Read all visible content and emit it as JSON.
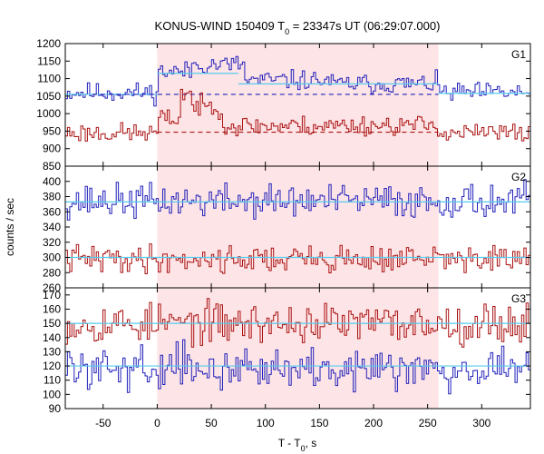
{
  "chart_data": {
    "type": "line",
    "title": {
      "main": "KONUS-WIND 150409 T",
      "sub": "0",
      "rest": " = 23347s UT (06:29:07.000)"
    },
    "xlabel": {
      "main": "T - T",
      "sub": "0",
      "rest": ", s"
    },
    "ylabel": "counts / sec",
    "xlim": [
      -85,
      345
    ],
    "x_ticks": [
      -50,
      0,
      50,
      100,
      150,
      200,
      250,
      300
    ],
    "shaded_interval": [
      0,
      260
    ],
    "colors": {
      "upper": "#2222bb",
      "lower": "#aa1111",
      "fit": "#55ccee",
      "shade": "#fde4e6"
    },
    "panels": [
      {
        "name": "G1",
        "ylim": [
          850,
          1200
        ],
        "y_ticks": [
          850,
          900,
          950,
          1000,
          1050,
          1100,
          1150,
          1200
        ],
        "series": [
          {
            "color_key": "upper",
            "mean": 1060,
            "noise": 14,
            "seed": 11,
            "excess": [
              [
                0,
                30,
                60
              ],
              [
                30,
                80,
                80
              ],
              [
                80,
                160,
                35
              ],
              [
                160,
                260,
                25
              ]
            ],
            "fit": [
              [
                -85,
                0,
                1055
              ],
              [
                0,
                35,
                1115
              ],
              [
                35,
                75,
                1115
              ],
              [
                75,
                260,
                1085
              ],
              [
                260,
                345,
                1058
              ]
            ],
            "baseline": {
              "x": [
                -60,
                260
              ],
              "value": 1055
            }
          },
          {
            "color_key": "lower",
            "mean": 945,
            "noise": 14,
            "seed": 23,
            "excess": [
              [
                0,
                30,
                40
              ],
              [
                20,
                60,
                75
              ],
              [
                60,
                160,
                20
              ],
              [
                160,
                260,
                22
              ]
            ],
            "fit": [],
            "baseline": {
              "x": [
                0,
                260
              ],
              "value": 947
            }
          }
        ]
      },
      {
        "name": "G2",
        "ylim": [
          260,
          420
        ],
        "y_ticks": [
          260,
          280,
          300,
          320,
          340,
          360,
          380,
          400
        ],
        "series": [
          {
            "color_key": "upper",
            "mean": 374,
            "noise": 11,
            "seed": 37,
            "excess": [],
            "fit": [
              [
                -85,
                345,
                373
              ]
            ],
            "baseline": null
          },
          {
            "color_key": "lower",
            "mean": 298,
            "noise": 9,
            "seed": 41,
            "excess": [],
            "fit": [
              [
                -85,
                345,
                300
              ]
            ],
            "baseline": null
          }
        ]
      },
      {
        "name": "G3",
        "ylim": [
          90,
          175
        ],
        "y_ticks": [
          90,
          100,
          110,
          120,
          130,
          140,
          150,
          160,
          170
        ],
        "series": [
          {
            "color_key": "lower",
            "mean": 150,
            "noise": 7,
            "seed": 53,
            "excess": [],
            "fit": [
              [
                -85,
                345,
                150
              ]
            ],
            "baseline": null
          },
          {
            "color_key": "upper",
            "mean": 119,
            "noise": 7,
            "seed": 59,
            "excess": [],
            "fit": [
              [
                -85,
                345,
                120
              ]
            ],
            "baseline": null
          }
        ]
      }
    ]
  }
}
